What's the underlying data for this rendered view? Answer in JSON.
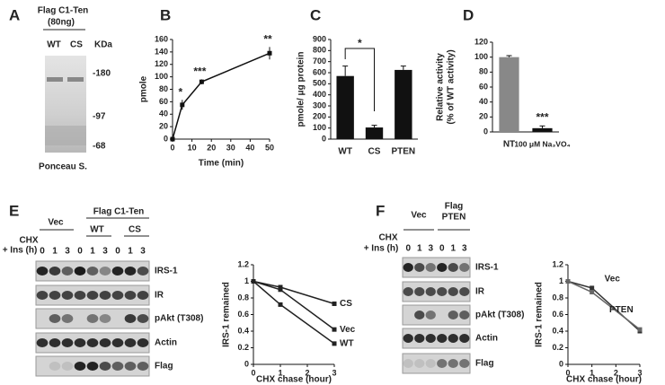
{
  "panel_labels": [
    "A",
    "B",
    "C",
    "D",
    "E",
    "F"
  ],
  "gel_a": {
    "header": [
      "Flag C1-Ten",
      "(80ng)"
    ],
    "lanes": [
      "WT",
      "CS",
      "KDa"
    ],
    "markers": [
      "-180",
      "-97",
      "-68"
    ],
    "footer": "Ponceau S."
  },
  "blot_e": {
    "group_labels": [
      "Vec",
      "Flag C1-Ten"
    ],
    "subgroups": [
      "WT",
      "CS"
    ],
    "row_header": [
      "CHX",
      "+ Ins (h)"
    ],
    "times": [
      "0",
      "1",
      "3",
      "0",
      "1",
      "3",
      "0",
      "1",
      "3"
    ],
    "rows": [
      "IRS-1",
      "IR",
      "pAkt (T308)",
      "Actin",
      "Flag"
    ]
  },
  "blot_f": {
    "group_labels": [
      "Vec",
      "Flag",
      "PTEN"
    ],
    "row_header": [
      "CHX",
      "+ Ins (h)"
    ],
    "times": [
      "0",
      "1",
      "3",
      "0",
      "1",
      "3"
    ],
    "rows": [
      "IRS-1",
      "IR",
      "pAkt (T308)",
      "Actin",
      "Flag"
    ]
  },
  "chart_data": [
    {
      "type": "line",
      "x": [
        0,
        5,
        15,
        50
      ],
      "values": [
        0,
        55,
        92,
        138
      ],
      "errors": [
        0,
        8,
        4,
        10
      ],
      "color": "#111",
      "xlim": [
        0,
        50
      ],
      "xticks": [
        0,
        10,
        20,
        30,
        40,
        50
      ],
      "ylim": [
        0,
        160
      ],
      "yticks": [
        0,
        20,
        40,
        60,
        80,
        100,
        120,
        140,
        160
      ],
      "x_label": "Time (min)",
      "y_label": "pmole",
      "annotations": [
        "*",
        "***",
        "**"
      ]
    },
    {
      "type": "bar",
      "categories": [
        "WT",
        "CS",
        "PTEN"
      ],
      "values": [
        570,
        105,
        625
      ],
      "errors": [
        90,
        20,
        35
      ],
      "color": "#111",
      "ylim": [
        0,
        900
      ],
      "yticks": [
        0,
        100,
        200,
        300,
        400,
        500,
        600,
        700,
        800,
        900
      ],
      "y_label": "pmole/ μg protein",
      "annotations": [
        "*"
      ]
    },
    {
      "type": "bar",
      "categories": [
        "NT",
        "100 μM Na₃VO₄"
      ],
      "values": [
        100,
        5
      ],
      "errors": [
        2,
        3
      ],
      "colors": [
        "#888",
        "#111"
      ],
      "ylim": [
        0,
        120
      ],
      "yticks": [
        0,
        20,
        40,
        60,
        80,
        100,
        120
      ],
      "y_label": [
        "Relative activity",
        "(% of WT activity)"
      ],
      "annotations": [
        "***"
      ]
    },
    {
      "type": "line",
      "x": [
        0,
        1,
        3
      ],
      "xlim": [
        0,
        3
      ],
      "xticks": [
        0,
        1,
        2,
        3
      ],
      "ylim": [
        0,
        1.2
      ],
      "yticks": [
        0,
        0.2,
        0.4,
        0.6,
        0.8,
        1,
        1.2
      ],
      "x_label": "CHX chase (hour)",
      "y_label": "IRS-1 remained",
      "series": [
        {
          "name": "CS",
          "color": "#222",
          "values": [
            1,
            0.93,
            0.73
          ]
        },
        {
          "name": "Vec",
          "color": "#222",
          "values": [
            1,
            0.9,
            0.42
          ]
        },
        {
          "name": "WT",
          "color": "#222",
          "values": [
            1,
            0.72,
            0.25
          ]
        }
      ]
    },
    {
      "type": "line",
      "x": [
        0,
        1,
        3
      ],
      "xlim": [
        0,
        3
      ],
      "xticks": [
        0,
        1,
        2,
        3
      ],
      "ylim": [
        0,
        1.2
      ],
      "yticks": [
        0,
        0.2,
        0.4,
        0.6,
        0.8,
        1,
        1.2
      ],
      "x_label": "CHX chase (hour)",
      "y_label": "IRS-1 remained",
      "series": [
        {
          "name": "Vec",
          "color": "#333",
          "values": [
            1,
            0.92,
            0.4
          ]
        },
        {
          "name": "PTEN",
          "color": "#666",
          "values": [
            1,
            0.87,
            0.42
          ]
        }
      ]
    }
  ]
}
